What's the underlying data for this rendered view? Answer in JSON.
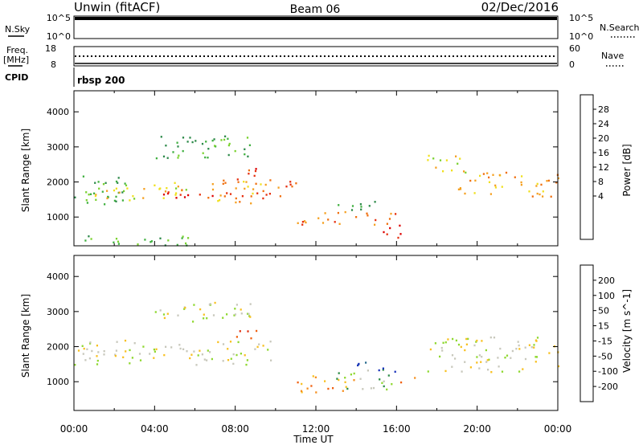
{
  "header": {
    "left": "Unwin (fitACF)",
    "center": "Beam 06",
    "right": "02/Dec/2016"
  },
  "top_panels": {
    "nsky_label": "N.Sky",
    "nsky_ticks": [
      "10^5",
      "10^0"
    ],
    "nsky_right_ticks": [
      "10^5",
      "10^0"
    ],
    "nsearch_label": "N.Search",
    "freq_label": "Freq.",
    "freq_unit": "[MHz]",
    "freq_ticks": [
      "18",
      "8"
    ],
    "nave_ticks": [
      "60",
      "0"
    ],
    "nave_label": "Nave",
    "cpid_label": "CPID",
    "cpid_value": "rbsp 200"
  },
  "chart_data": [
    {
      "type": "heatmap",
      "name": "power",
      "ylabel": "Slant Range [km]",
      "yticks": [
        1000,
        2000,
        3000,
        4000
      ],
      "ylim": [
        180,
        4600
      ],
      "xlim": [
        0,
        24
      ],
      "colorbar": {
        "label": "Power [dB]",
        "ticks": [
          "28",
          "24",
          "20",
          "16",
          "12",
          "8",
          "4"
        ],
        "colors": [
          "#0022ee",
          "#2255aa",
          "#2e8a4a",
          "#40b040",
          "#7ad230",
          "#f0e01e",
          "#f5a020",
          "#f07010",
          "#e63010",
          "#dd0000"
        ]
      },
      "regions": [
        {
          "t0": 0.0,
          "t1": 2.5,
          "r0": 1300,
          "r1": 2300,
          "level": 3
        },
        {
          "t0": 1.0,
          "t1": 6.0,
          "r0": 1500,
          "r1": 2000,
          "level": 5
        },
        {
          "t0": 3.0,
          "t1": 9.5,
          "r0": 1550,
          "r1": 1800,
          "level": 8
        },
        {
          "t0": 6.5,
          "t1": 9.5,
          "r0": 1400,
          "r1": 2100,
          "level": 6
        },
        {
          "t0": 7.8,
          "t1": 9.0,
          "r0": 2000,
          "r1": 2500,
          "level": 8
        },
        {
          "t0": 9.5,
          "t1": 11.0,
          "r0": 1600,
          "r1": 2200,
          "level": 7
        },
        {
          "t0": 11.0,
          "t1": 16.0,
          "r0": 800,
          "r1": 1200,
          "level": 7
        },
        {
          "t0": 13.0,
          "t1": 15.5,
          "r0": 1200,
          "r1": 1500,
          "level": 2
        },
        {
          "t0": 15.2,
          "t1": 16.2,
          "r0": 300,
          "r1": 800,
          "level": 9
        },
        {
          "t0": 17.5,
          "t1": 19.5,
          "r0": 2200,
          "r1": 2800,
          "level": 5
        },
        {
          "t0": 19.0,
          "t1": 24.0,
          "r0": 1600,
          "r1": 2300,
          "level": 6
        },
        {
          "t0": 0.0,
          "t1": 6.0,
          "r0": 200,
          "r1": 500,
          "level": 3
        },
        {
          "t0": 4.0,
          "t1": 9.0,
          "r0": 2700,
          "r1": 3400,
          "level": 3
        }
      ]
    },
    {
      "type": "heatmap",
      "name": "velocity",
      "ylabel": "Slant Range [km]",
      "yticks": [
        1000,
        2000,
        3000,
        4000
      ],
      "ylim": [
        180,
        4600
      ],
      "xlim": [
        0,
        24
      ],
      "xticks": [
        "00:00",
        "04:00",
        "08:00",
        "12:00",
        "16:00",
        "20:00",
        "00:00"
      ],
      "xlabel": "Time UT",
      "colorbar": {
        "label": "Velocity [m s^-1]",
        "ticks": [
          "200",
          "100",
          "50",
          "15",
          "-15",
          "-50",
          "-100",
          "-200"
        ],
        "colors": [
          "#1a33bb",
          "#2a6d8e",
          "#2d8c46",
          "#8fd830",
          "#c8c8bc",
          "#f8c020",
          "#f59020",
          "#f06010",
          "#e03010"
        ]
      },
      "regions": [
        {
          "t0": 0.0,
          "t1": 10.0,
          "r0": 1500,
          "r1": 2200,
          "level": 4
        },
        {
          "t0": 4.0,
          "t1": 9.0,
          "r0": 2700,
          "r1": 3300,
          "level": 4
        },
        {
          "t0": 7.8,
          "t1": 9.2,
          "r0": 2150,
          "r1": 2500,
          "level": 8
        },
        {
          "t0": 11.0,
          "t1": 14.0,
          "r0": 700,
          "r1": 1200,
          "level": 6
        },
        {
          "t0": 13.0,
          "t1": 15.8,
          "r0": 800,
          "r1": 1400,
          "level": 3
        },
        {
          "t0": 14.0,
          "t1": 16.0,
          "r0": 1300,
          "r1": 1600,
          "level": 0
        },
        {
          "t0": 16.0,
          "t1": 17.0,
          "r0": 1000,
          "r1": 1200,
          "level": 6
        },
        {
          "t0": 17.5,
          "t1": 24.0,
          "r0": 1300,
          "r1": 2300,
          "level": 4
        }
      ]
    }
  ]
}
